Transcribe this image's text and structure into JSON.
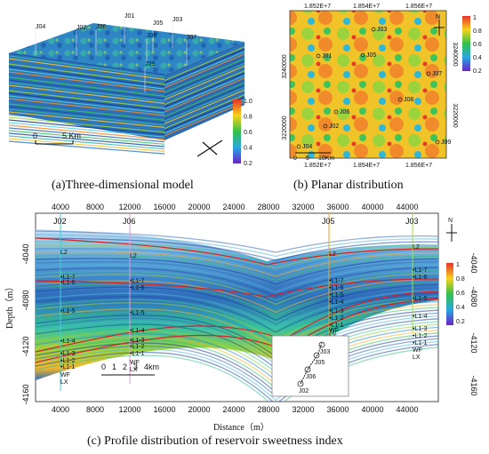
{
  "captions": {
    "a": "(a)Three-dimensional model",
    "b": "(b) Planar distribution",
    "c": "(c) Profile distribution of reservoir sweetness index"
  },
  "panel_a": {
    "wells": [
      "J04",
      "J02",
      "J06",
      "J01",
      "J05",
      "J03",
      "J08",
      "J07",
      "J09"
    ],
    "colorbar_ticks": [
      "1.0",
      "0.8",
      "0.6",
      "0.4",
      "0.2"
    ],
    "scale_label_0": "0",
    "scale_label_1": "5 Km"
  },
  "panel_b": {
    "x_ticks": [
      "1.852E+7",
      "1.854E+7",
      "1.856E+7"
    ],
    "y_ticks_left": [
      "3240000",
      "3220000"
    ],
    "y_ticks_right": [
      "3240000",
      "3220000"
    ],
    "colorbar_ticks": [
      "1",
      "0.8",
      "0.6",
      "0.4",
      "0.2"
    ],
    "wells": [
      "J03",
      "J01",
      "J05",
      "J07",
      "J08",
      "J06",
      "J02",
      "J04",
      "J09"
    ],
    "scale_labels": [
      "0",
      "5",
      "10Km"
    ],
    "north": "N"
  },
  "panel_c": {
    "top_ticks": [
      "4000",
      "8000",
      "12000",
      "16000",
      "20000",
      "24000",
      "28000",
      "32000",
      "36000",
      "40000",
      "44000"
    ],
    "bottom_ticks": [
      "4000",
      "8000",
      "12000",
      "16000",
      "20000",
      "24000",
      "28000",
      "32000",
      "36000",
      "40000",
      "44000"
    ],
    "x_label": "Distance（m）",
    "y_label": "Depth（m）",
    "y_ticks_left": [
      "-4040",
      "-4080",
      "-4120",
      "-4160"
    ],
    "y_ticks_right": [
      "-4040",
      "-4080",
      "-4120",
      "-4160"
    ],
    "colorbar_ticks": [
      "1",
      "0.8",
      "0.6",
      "0.4",
      "0.2"
    ],
    "wells": [
      "J02",
      "J06",
      "J05",
      "J03"
    ],
    "layers_a": [
      "L2",
      "L1-7",
      "L1-6",
      "L1-5",
      "L1-4",
      "L1-3",
      "L1-2",
      "L1-1",
      "WF",
      "LX"
    ],
    "layers_b": [
      "L2",
      "L1-7",
      "L1-6",
      "L1-5",
      "L1-4",
      "L1-3",
      "L1-2",
      "L1-1",
      "WF",
      "LX"
    ],
    "layers_c": [
      "L2",
      "L1-7",
      "L1-6",
      "L1-5",
      "L1-4",
      "L1-3",
      "L1-2",
      "L1-1",
      "WF",
      "LX"
    ],
    "layers_d": [
      "L2",
      "L1-7",
      "L1-6",
      "L1-5",
      "L1-4",
      "L1-3",
      "L1-2",
      "L1-1",
      "WF",
      "LX"
    ],
    "scale_labels": [
      "0",
      "1",
      "2",
      "3",
      "4km"
    ],
    "inset_wells": [
      "J03",
      "J05",
      "J06",
      "J02"
    ],
    "north": "N"
  }
}
